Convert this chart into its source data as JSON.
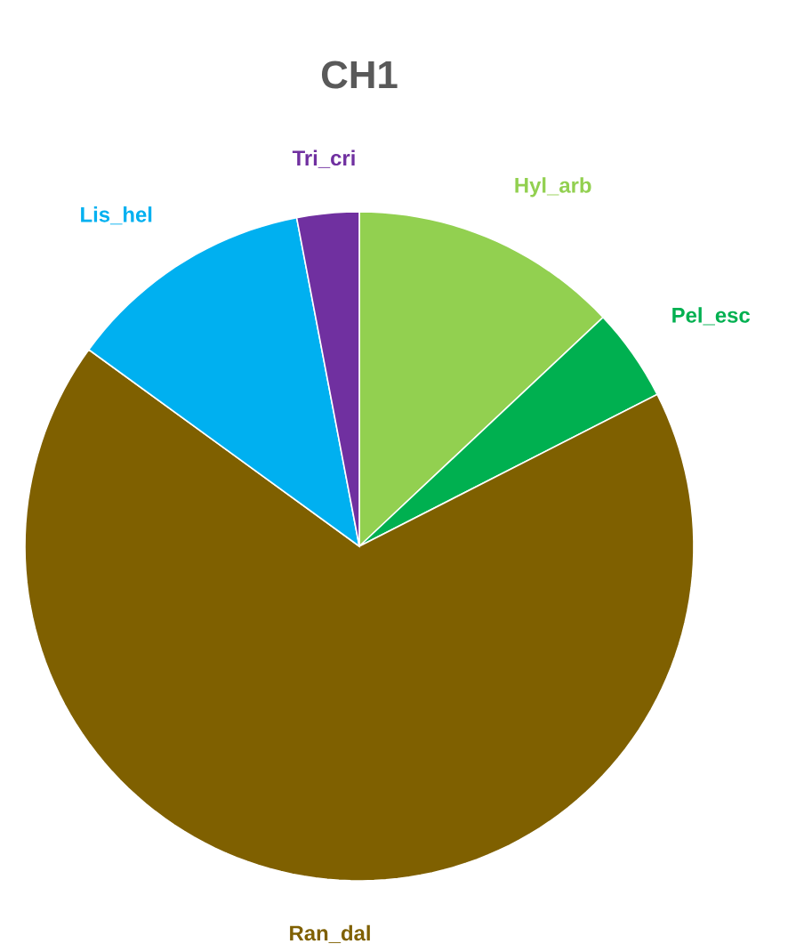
{
  "chart_data": {
    "type": "pie",
    "title": "CH1",
    "categories": [
      "Hyl_arb",
      "Pel_esc",
      "Ran_dal",
      "Lis_hel",
      "Tri_cri"
    ],
    "values": [
      13,
      4.5,
      67.5,
      12,
      3
    ],
    "colors": [
      "#92d050",
      "#00b050",
      "#7f6000",
      "#00b0f0",
      "#7030a0"
    ]
  }
}
